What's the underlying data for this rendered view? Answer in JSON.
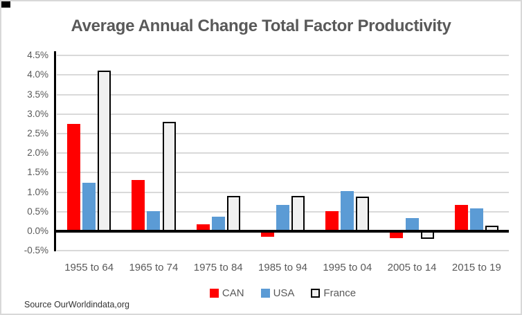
{
  "title": "Average Annual Change Total Factor Productivity",
  "source": "Source OurWorldindata,org",
  "chart_data": {
    "type": "bar",
    "title": "Average Annual Change Total Factor Productivity",
    "categories": [
      "1955 to 64",
      "1965 to 74",
      "1975 to 84",
      "1985 to 94",
      "1995 to 04",
      "2005 to 14",
      "2015 to 19"
    ],
    "series": [
      {
        "name": "CAN",
        "color": "#ff0000",
        "border": null,
        "values": [
          2.74,
          1.32,
          0.18,
          -0.15,
          0.52,
          -0.17,
          0.68
        ]
      },
      {
        "name": "USA",
        "color": "#5b9bd5",
        "border": null,
        "values": [
          1.24,
          0.51,
          0.38,
          0.67,
          1.02,
          0.33,
          0.59
        ]
      },
      {
        "name": "France",
        "color": "#f0f0f0",
        "border": "#000000",
        "values": [
          4.11,
          2.81,
          0.9,
          0.9,
          0.88,
          -0.2,
          0.15
        ]
      }
    ],
    "ylabel": "",
    "xlabel": "",
    "ylim": [
      -0.5,
      4.5
    ],
    "ytick_step": 0.5,
    "ytick_labels": [
      "4.5%",
      "4.0%",
      "3.5%",
      "3.0%",
      "2.5%",
      "2.0%",
      "1.5%",
      "1.0%",
      "0.5%",
      "0.0%",
      "-0.5%"
    ],
    "grid": true,
    "legend_position": "bottom",
    "colors": {
      "grid": "#d9d9d9",
      "axis": "#000000",
      "text": "#595959"
    }
  }
}
